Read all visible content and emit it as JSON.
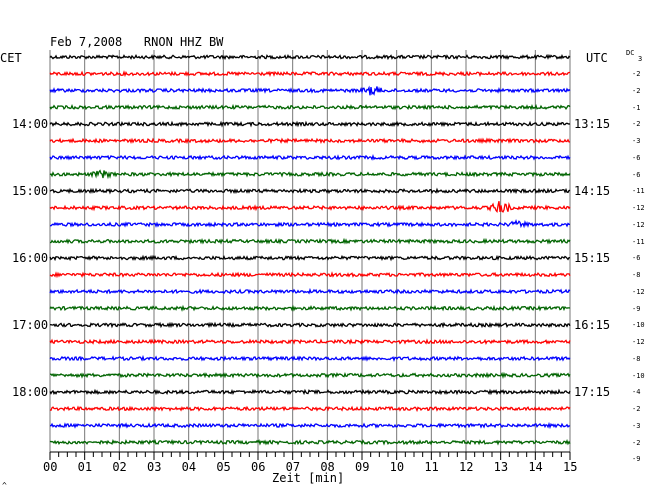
{
  "chart_data": {
    "type": "line",
    "title": "Feb 7,2008   RNON HHZ BW",
    "left_tz": "CET",
    "right_tz": "UTC",
    "dc_label": "DC",
    "dc_top_value": "3",
    "xlabel": "Zeit [min]",
    "xlim": [
      0,
      15
    ],
    "x_ticks": [
      "00",
      "01",
      "02",
      "03",
      "04",
      "05",
      "06",
      "07",
      "08",
      "09",
      "10",
      "11",
      "12",
      "13",
      "14",
      "15"
    ],
    "minor_ticks_per_min": 4,
    "vertical_grid": true,
    "trace_count": 24,
    "trace_colors": [
      "#000000",
      "#ff0000",
      "#0000ff",
      "#006400"
    ],
    "left_hour_labels": [
      {
        "trace": 4,
        "text": "14:00"
      },
      {
        "trace": 8,
        "text": "15:00"
      },
      {
        "trace": 12,
        "text": "16:00"
      },
      {
        "trace": 16,
        "text": "17:00"
      },
      {
        "trace": 20,
        "text": "18:00"
      }
    ],
    "right_hour_labels": [
      {
        "trace": 4,
        "text": "13:15"
      },
      {
        "trace": 8,
        "text": "14:15"
      },
      {
        "trace": 12,
        "text": "15:15"
      },
      {
        "trace": 16,
        "text": "16:15"
      },
      {
        "trace": 20,
        "text": "17:15"
      }
    ],
    "dc_offsets": [
      "-2",
      "-2",
      "-1",
      "-2",
      "-3",
      "-6",
      "-6",
      "-11",
      "-12",
      "-12",
      "-11",
      "-6",
      "-8",
      "-12",
      "-9",
      "-10",
      "-12",
      "-8",
      "-10",
      "-4",
      "-2",
      "-3",
      "-2",
      "-9"
    ],
    "events": [
      {
        "trace": 2,
        "minute": 9.3,
        "amplitude": 2.0
      },
      {
        "trace": 9,
        "minute": 13.0,
        "amplitude": 3.0
      },
      {
        "trace": 7,
        "minute": 1.5,
        "amplitude": 1.5
      },
      {
        "trace": 10,
        "minute": 13.5,
        "amplitude": 1.2
      }
    ]
  },
  "corner_mark": "^"
}
